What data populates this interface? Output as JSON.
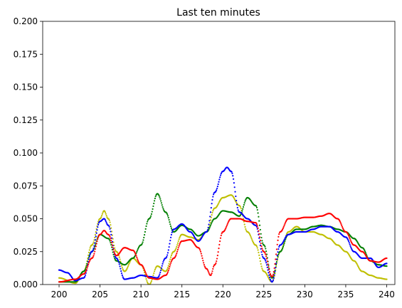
{
  "chart_data": {
    "type": "scatter",
    "title": "Last ten minutes",
    "xlabel": "",
    "ylabel": "",
    "xlim": [
      198,
      241
    ],
    "ylim": [
      0,
      0.2
    ],
    "xticks": [
      200,
      205,
      210,
      215,
      220,
      225,
      230,
      235,
      240
    ],
    "yticks": [
      0.0,
      0.025,
      0.05,
      0.075,
      0.1,
      0.125,
      0.15,
      0.175,
      0.2
    ],
    "xtick_labels": [
      "200",
      "205",
      "210",
      "215",
      "220",
      "225",
      "230",
      "235",
      "240"
    ],
    "ytick_labels": [
      "0.000",
      "0.025",
      "0.050",
      "0.075",
      "0.100",
      "0.125",
      "0.150",
      "0.175",
      "0.200"
    ],
    "grid": false,
    "series": [
      {
        "color": "#bfbf00",
        "x": [
          200,
          202,
          203,
          204,
          205,
          205.5,
          206,
          207,
          208,
          209,
          210,
          211,
          212,
          213,
          214,
          215,
          216,
          217,
          218,
          219,
          220,
          221,
          222,
          223,
          224,
          225,
          226,
          227,
          228,
          229,
          230,
          231,
          232,
          233,
          234,
          235,
          236,
          237,
          238,
          239,
          240
        ],
        "y": [
          0.005,
          0.001,
          0.01,
          0.03,
          0.05,
          0.056,
          0.05,
          0.025,
          0.01,
          0.02,
          0.015,
          0.0,
          0.014,
          0.01,
          0.025,
          0.038,
          0.036,
          0.034,
          0.04,
          0.058,
          0.066,
          0.068,
          0.06,
          0.04,
          0.03,
          0.01,
          0.002,
          0.025,
          0.04,
          0.044,
          0.04,
          0.04,
          0.038,
          0.035,
          0.03,
          0.025,
          0.018,
          0.01,
          0.007,
          0.005,
          0.004
        ]
      },
      {
        "color": "#007f00",
        "x": [
          200,
          202,
          203,
          204,
          205,
          206,
          207,
          208,
          209,
          210,
          211,
          212,
          213,
          214,
          215,
          216,
          217,
          218,
          219,
          220,
          221,
          222,
          223,
          224,
          225,
          226,
          227,
          228,
          229,
          230,
          231,
          232,
          233,
          234,
          235,
          236,
          237,
          238,
          239,
          240
        ],
        "y": [
          0.002,
          0.002,
          0.01,
          0.025,
          0.038,
          0.035,
          0.018,
          0.015,
          0.02,
          0.03,
          0.05,
          0.069,
          0.055,
          0.04,
          0.045,
          0.042,
          0.037,
          0.04,
          0.05,
          0.056,
          0.055,
          0.052,
          0.066,
          0.06,
          0.03,
          0.005,
          0.025,
          0.038,
          0.042,
          0.042,
          0.044,
          0.045,
          0.044,
          0.042,
          0.04,
          0.035,
          0.028,
          0.018,
          0.015,
          0.014
        ]
      },
      {
        "color": "#0000ff",
        "x": [
          200,
          201,
          202,
          203,
          204,
          205,
          205.5,
          206,
          207,
          208,
          209,
          210,
          211,
          212,
          213,
          214,
          215,
          216,
          217,
          218,
          219,
          220,
          220.5,
          221,
          222,
          223,
          224,
          225,
          226,
          227,
          228,
          229,
          230,
          231,
          232,
          233,
          234,
          235,
          236,
          237,
          238,
          239,
          240
        ],
        "y": [
          0.011,
          0.009,
          0.003,
          0.005,
          0.025,
          0.048,
          0.05,
          0.045,
          0.02,
          0.004,
          0.005,
          0.007,
          0.006,
          0.005,
          0.02,
          0.042,
          0.046,
          0.04,
          0.033,
          0.04,
          0.07,
          0.086,
          0.089,
          0.086,
          0.055,
          0.05,
          0.045,
          0.02,
          0.002,
          0.03,
          0.038,
          0.04,
          0.04,
          0.042,
          0.044,
          0.044,
          0.04,
          0.036,
          0.025,
          0.02,
          0.02,
          0.013,
          0.016
        ]
      },
      {
        "color": "#ff0000",
        "x": [
          200,
          202,
          203,
          204,
          205,
          205.5,
          206,
          207,
          208,
          209,
          210,
          211,
          212,
          213,
          214,
          215,
          216,
          217,
          218,
          218.5,
          219,
          220,
          221,
          222,
          223,
          224,
          225,
          226,
          227,
          228,
          229,
          230,
          231,
          232,
          233,
          234,
          235,
          236,
          237,
          238,
          239,
          240
        ],
        "y": [
          0.002,
          0.004,
          0.008,
          0.02,
          0.038,
          0.041,
          0.038,
          0.022,
          0.028,
          0.026,
          0.015,
          0.005,
          0.004,
          0.007,
          0.02,
          0.033,
          0.034,
          0.028,
          0.012,
          0.007,
          0.015,
          0.04,
          0.05,
          0.05,
          0.048,
          0.047,
          0.025,
          0.006,
          0.04,
          0.05,
          0.05,
          0.051,
          0.051,
          0.052,
          0.054,
          0.05,
          0.04,
          0.03,
          0.025,
          0.018,
          0.017,
          0.02
        ]
      }
    ]
  }
}
